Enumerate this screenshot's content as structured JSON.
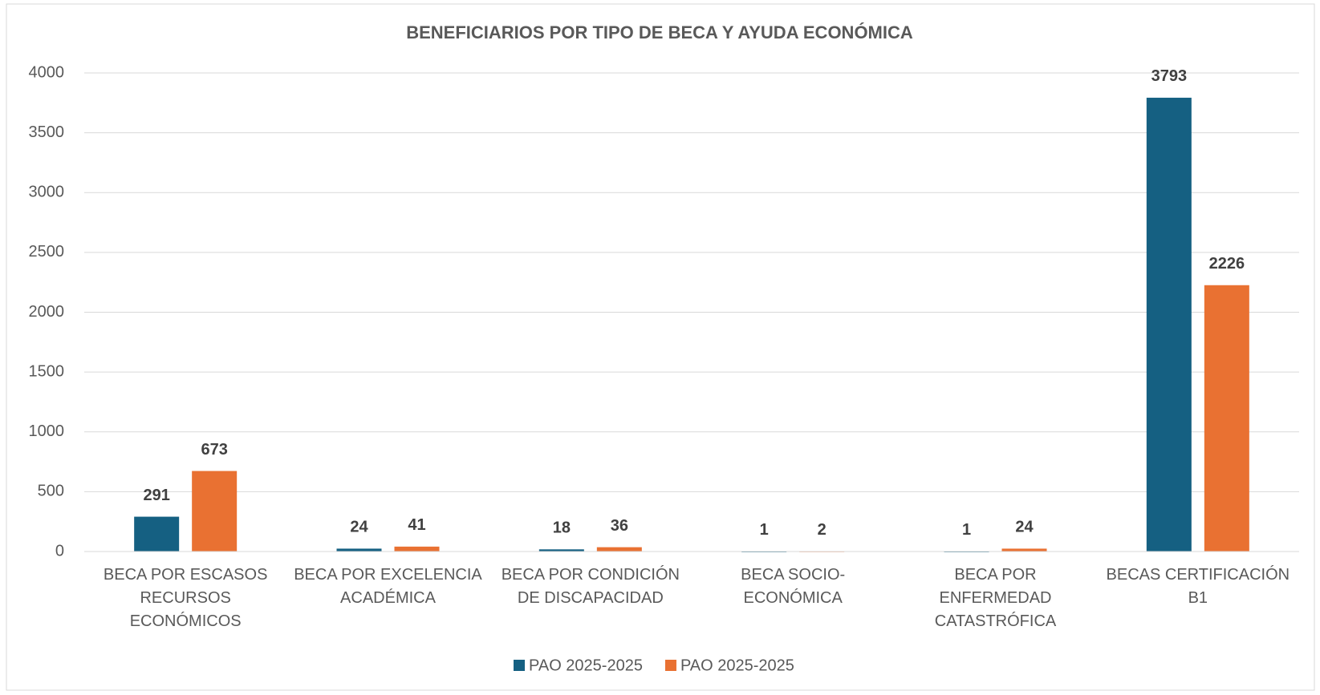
{
  "chart_data": {
    "type": "bar",
    "title": "BENEFICIARIOS POR TIPO DE BECA Y AYUDA ECONÓMICA",
    "categories": [
      "BECA POR ESCASOS RECURSOS ECONÓMICOS",
      "BECA POR EXCELENCIA ACADÉMICA",
      "BECA POR CONDICIÓN DE DISCAPACIDAD",
      "BECA SOCIO-ECONÓMICA",
      "BECA POR ENFERMEDAD CATASTRÓFICA",
      "BECAS CERTIFICACIÓN B1"
    ],
    "series": [
      {
        "name": "PAO 2025-2025",
        "color": "#156082",
        "values": [
          291,
          24,
          18,
          1,
          1,
          3793
        ]
      },
      {
        "name": "PAO 2025-2025",
        "color": "#e97132",
        "values": [
          673,
          41,
          36,
          2,
          24,
          2226
        ]
      }
    ],
    "ylim": [
      0,
      4000
    ],
    "yticks": [
      0,
      500,
      1000,
      1500,
      2000,
      2500,
      3000,
      3500,
      4000
    ],
    "grid": true,
    "legend": "bottom"
  }
}
